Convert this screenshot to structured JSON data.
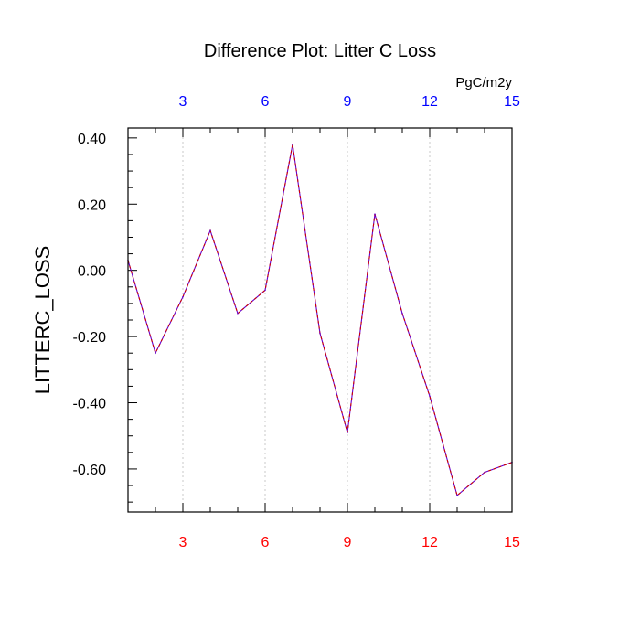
{
  "chart_data": {
    "type": "line",
    "title": "Difference Plot: Litter C Loss",
    "ylabel": "LITTERC_LOSS",
    "units": "PgC/m2y",
    "x": [
      1,
      2,
      3,
      4,
      5,
      6,
      7,
      8,
      9,
      10,
      11,
      12,
      13,
      14,
      15
    ],
    "series": [
      {
        "values": [
          0.03,
          -0.25,
          -0.08,
          0.12,
          -0.13,
          -0.06,
          0.38,
          -0.19,
          -0.49,
          0.17,
          -0.13,
          -0.38,
          -0.68,
          -0.61,
          -0.58
        ]
      }
    ],
    "xlim": [
      1,
      15
    ],
    "ylim": [
      -0.73,
      0.43
    ],
    "x_ticks": [
      3,
      6,
      9,
      12,
      15
    ],
    "x_tick_labels": [
      "3",
      "6",
      "9",
      "12",
      "15"
    ],
    "y_ticks": [
      0.4,
      0.2,
      0.0,
      -0.2,
      -0.4,
      -0.6
    ],
    "y_tick_labels": [
      "0.40",
      "0.20",
      "0.00",
      "-0.20",
      "-0.40",
      "-0.60"
    ],
    "grid": "vertical dotted",
    "colors": {
      "line": "#6600cc",
      "line_dash": "#cc0000",
      "bottom_ticks": "#ff0000",
      "top_ticks": "#0000ff",
      "grid": "#c8c8c8",
      "axis": "#000000"
    }
  }
}
